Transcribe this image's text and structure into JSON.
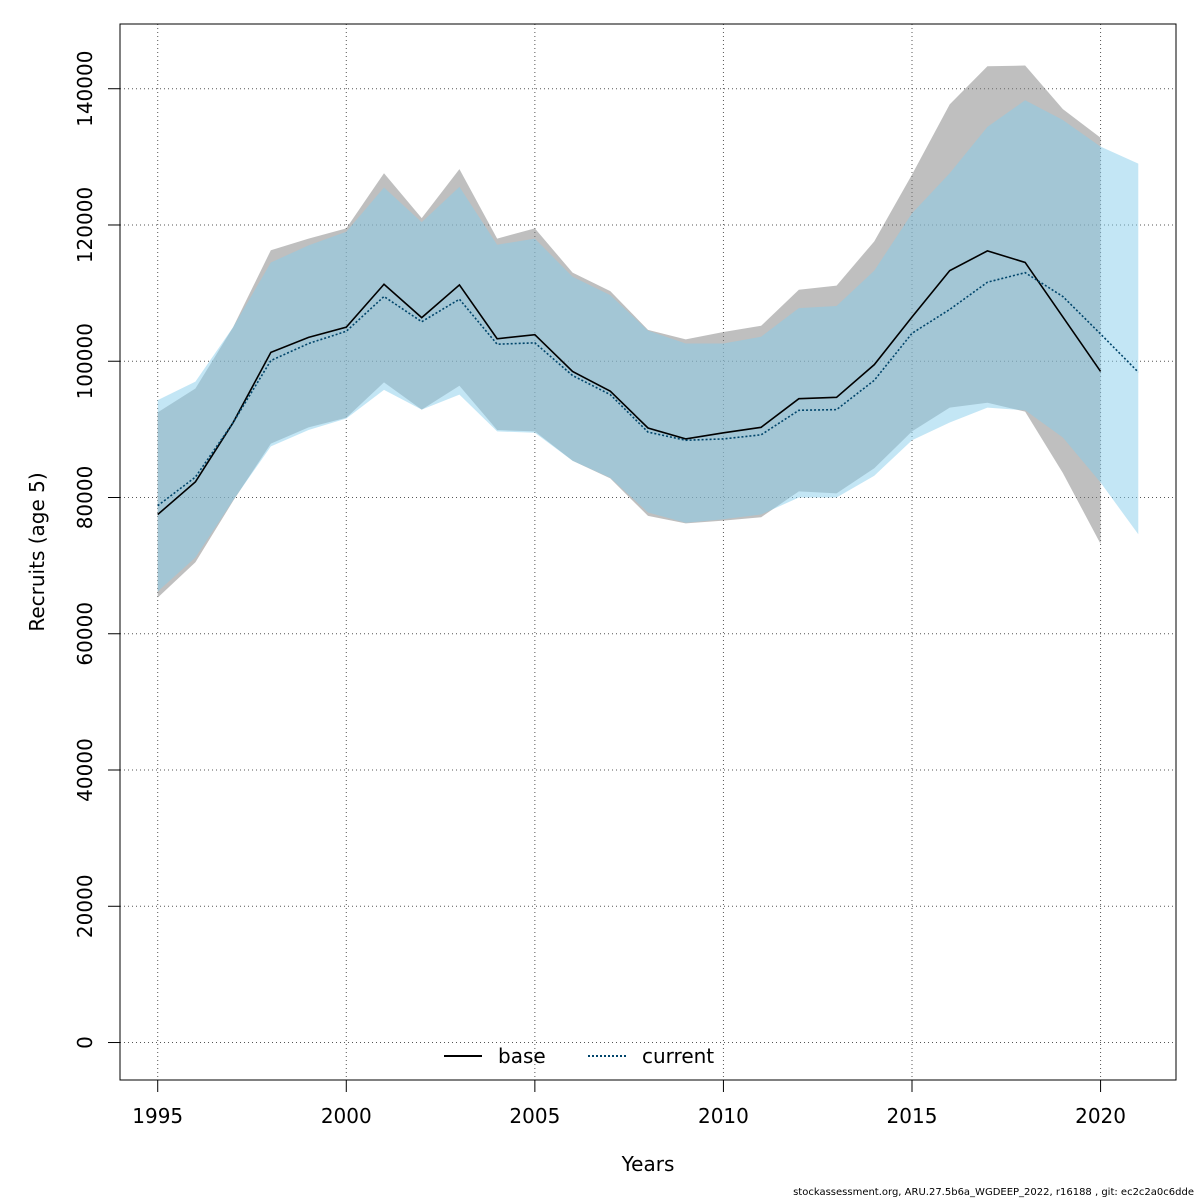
{
  "chart_data": {
    "type": "area",
    "title": "",
    "xlabel": "Years",
    "ylabel": "Recruits (age 5)",
    "xlim": [
      1994,
      2022
    ],
    "ylim": [
      -5500,
      149500
    ],
    "grid": true,
    "legend_placement": "bottom",
    "x_ticks": [
      1995,
      2000,
      2005,
      2010,
      2015,
      2020
    ],
    "y_ticks": [
      0,
      20000,
      40000,
      60000,
      80000,
      100000,
      120000,
      140000
    ],
    "series": [
      {
        "name": "base",
        "line_style": "solid",
        "line_color": "#000000",
        "band_color": "#808080",
        "years": [
          1995,
          1996,
          1997,
          1998,
          1999,
          2000,
          2001,
          2002,
          2003,
          2004,
          2005,
          2006,
          2007,
          2008,
          2009,
          2010,
          2011,
          2012,
          2013,
          2014,
          2015,
          2016,
          2017,
          2018,
          2019,
          2020
        ],
        "values": [
          77500,
          82300,
          91000,
          101300,
          103500,
          105000,
          111300,
          106400,
          111200,
          103300,
          103900,
          98500,
          95600,
          90200,
          88600,
          89500,
          90300,
          94500,
          94700,
          99500,
          106500,
          113300,
          116200,
          114500,
          106500,
          98500
        ],
        "lower": [
          65300,
          70500,
          79500,
          87900,
          90300,
          91700,
          96900,
          92900,
          96400,
          89900,
          89700,
          85400,
          82800,
          77300,
          76200,
          76600,
          77100,
          80900,
          80600,
          84300,
          89700,
          93200,
          93900,
          92600,
          83600,
          73200
        ],
        "upper": [
          92500,
          96000,
          105000,
          116300,
          118000,
          119500,
          127600,
          121000,
          128200,
          118000,
          119500,
          113000,
          110300,
          104600,
          103200,
          104300,
          105200,
          110500,
          111100,
          117600,
          127400,
          137700,
          143300,
          143400,
          137000,
          132800
        ]
      },
      {
        "name": "current",
        "line_style": "dotted",
        "line_color": "#00456b",
        "band_color": "#87ceeb",
        "years": [
          1995,
          1996,
          1997,
          1998,
          1999,
          2000,
          2001,
          2002,
          2003,
          2004,
          2005,
          2006,
          2007,
          2008,
          2009,
          2010,
          2011,
          2012,
          2013,
          2014,
          2015,
          2016,
          2017,
          2018,
          2019,
          2020,
          2021
        ],
        "values": [
          78800,
          83000,
          91000,
          100100,
          102600,
          104400,
          109500,
          105800,
          109100,
          102500,
          102700,
          97900,
          95100,
          89600,
          88400,
          88600,
          89200,
          92800,
          92900,
          97200,
          104100,
          107600,
          111600,
          113000,
          109500,
          104000,
          98400
        ],
        "lower": [
          66200,
          71200,
          79600,
          87500,
          89900,
          91600,
          95800,
          92900,
          95100,
          89700,
          89500,
          85400,
          82900,
          77800,
          76300,
          76800,
          77500,
          80000,
          80000,
          83200,
          88400,
          91000,
          93200,
          92800,
          88800,
          82200,
          74600
        ],
        "upper": [
          94300,
          97000,
          105000,
          114500,
          117000,
          119000,
          125500,
          120400,
          125600,
          117100,
          118000,
          112400,
          109700,
          104500,
          102600,
          102600,
          103600,
          107800,
          108100,
          113300,
          121700,
          127600,
          134400,
          138300,
          135400,
          131500,
          129000
        ]
      }
    ]
  },
  "footer_text": "stockassessment.org, ARU.27.5b6a_WGDEEP_2022, r16188 , git: ec2c2a0c6dde"
}
